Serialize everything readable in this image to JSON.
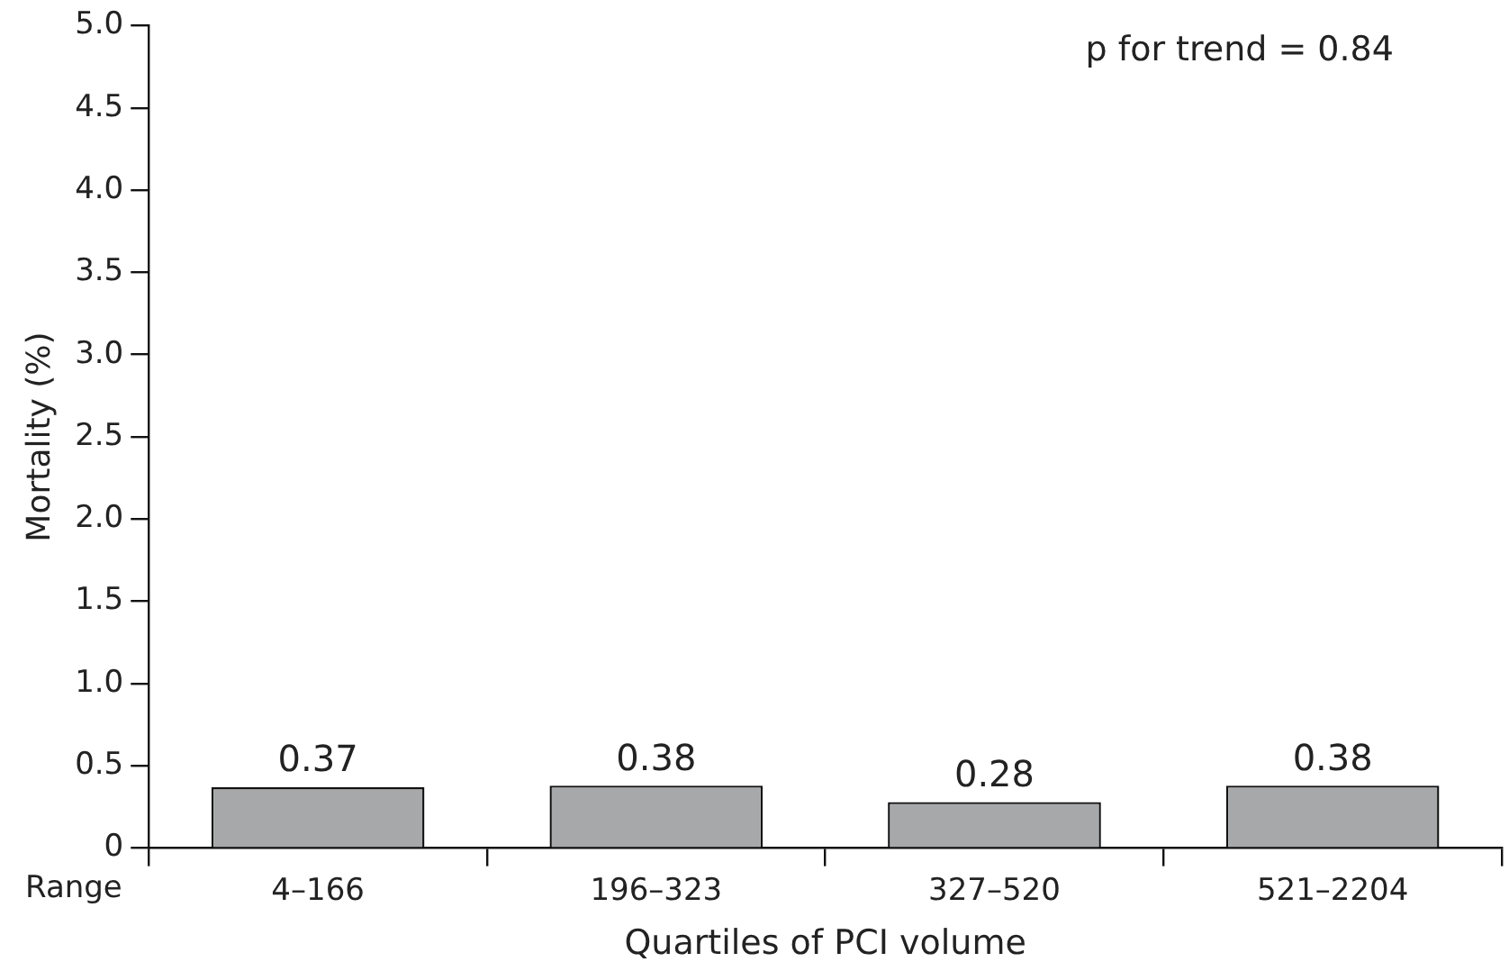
{
  "chart_data": {
    "type": "bar",
    "categories": [
      "4–166",
      "196–323",
      "327–520",
      "521–2204"
    ],
    "values": [
      0.37,
      0.38,
      0.28,
      0.38
    ],
    "color": "#a7a8aa",
    "data_labels": true,
    "xlabel": "Quartiles of PCI volume",
    "ylabel": "Mortality (%)",
    "ylim": [
      0,
      5
    ],
    "yticks": [
      0,
      0.5,
      {
        "value": 1,
        "label": "1.0"
      },
      1.5,
      {
        "value": 2,
        "label": "2.0"
      },
      2.5,
      {
        "value": 3,
        "label": "3.0"
      },
      3.5,
      {
        "value": 4,
        "label": "4.0"
      },
      4.5,
      {
        "value": 5,
        "label": "5.0"
      }
    ],
    "grid": false,
    "legend": false,
    "annotations": [
      "p for trend = 0.84",
      "Range"
    ]
  }
}
